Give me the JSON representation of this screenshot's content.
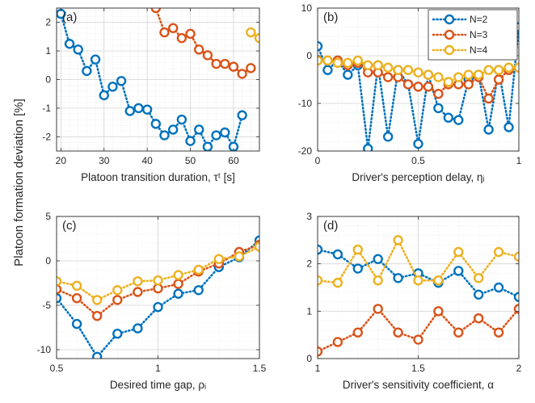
{
  "figure": {
    "ylabel": "Platoon formation deviation [%]"
  },
  "colors": {
    "N=2": "#0072BD",
    "N=3": "#D95319",
    "N=4": "#EDB120"
  },
  "chart_data": [
    {
      "id": "a",
      "panel_label": "(a)",
      "type": "line",
      "xlabel": "Platoon transition duration, τᵗ [s]",
      "xlim": [
        19,
        66
      ],
      "ylim": [
        -2.5,
        2.5
      ],
      "xticks": [
        20,
        30,
        40,
        50,
        60
      ],
      "yticks": [
        -2,
        -1,
        0,
        1,
        2
      ],
      "grid": true,
      "minor_grid": true,
      "marker": "circle",
      "linestyle": "dotted",
      "series": [
        {
          "color": "#0072BD",
          "x": [
            20,
            22,
            24,
            26,
            28,
            30,
            32,
            34,
            36,
            38,
            40,
            42,
            44,
            46,
            48,
            50,
            52,
            54,
            56,
            58,
            60,
            62
          ],
          "y": [
            2.3,
            1.25,
            1.05,
            0.3,
            0.7,
            -0.55,
            -0.25,
            -0.05,
            -1.1,
            -1.0,
            -1.05,
            -1.55,
            -1.95,
            -1.75,
            -1.4,
            -2.15,
            -1.75,
            -2.35,
            -1.95,
            -1.85,
            -2.35,
            -1.25
          ]
        },
        {
          "color": "#D95319",
          "x": [
            42,
            44,
            46,
            48,
            50,
            52,
            54,
            56,
            58,
            60,
            62,
            64
          ],
          "y": [
            2.5,
            1.65,
            1.8,
            1.45,
            1.6,
            1.05,
            0.85,
            0.55,
            0.55,
            0.45,
            0.2,
            0.4
          ]
        },
        {
          "color": "#EDB120",
          "x": [
            64,
            66
          ],
          "y": [
            1.65,
            1.45
          ]
        }
      ]
    },
    {
      "id": "b",
      "panel_label": "(b)",
      "type": "line",
      "xlabel": "Driver's perception delay, ηᵢ",
      "xlim": [
        0,
        1
      ],
      "ylim": [
        -20,
        10
      ],
      "xticks": [
        0,
        0.5,
        1
      ],
      "yticks": [
        -20,
        -10,
        0,
        10
      ],
      "grid": true,
      "minor_grid": true,
      "marker": "circle",
      "linestyle": "dotted",
      "legend": {
        "location": "top-right",
        "entries": [
          "N=2",
          "N=3",
          "N=4"
        ]
      },
      "series": [
        {
          "name": "N=2",
          "color": "#0072BD",
          "x": [
            0,
            0.05,
            0.1,
            0.15,
            0.2,
            0.25,
            0.3,
            0.35,
            0.4,
            0.45,
            0.5,
            0.55,
            0.6,
            0.65,
            0.7,
            0.75,
            0.8,
            0.85,
            0.9,
            0.95,
            1.0
          ],
          "y": [
            2,
            -3,
            -1,
            -4,
            -2,
            -19.5,
            -2,
            -17,
            -3,
            -6,
            -18.5,
            -4,
            -11,
            -13,
            -13.5,
            -5,
            -4,
            -15.5,
            -3,
            -15,
            6
          ]
        },
        {
          "name": "N=3",
          "color": "#D95319",
          "x": [
            0,
            0.05,
            0.1,
            0.15,
            0.2,
            0.25,
            0.3,
            0.35,
            0.4,
            0.45,
            0.5,
            0.55,
            0.6,
            0.65,
            0.7,
            0.75,
            0.8,
            0.85,
            0.9,
            0.95,
            1.0
          ],
          "y": [
            -1,
            -1,
            -1,
            -2,
            -1.5,
            -3.5,
            -3.5,
            -4.5,
            -4.5,
            -6,
            -6.5,
            -6.5,
            -8,
            -6,
            -6,
            -6,
            -4.5,
            -9,
            -5,
            -3,
            -2.5
          ]
        },
        {
          "name": "N=4",
          "color": "#EDB120",
          "x": [
            0,
            0.05,
            0.1,
            0.15,
            0.2,
            0.25,
            0.3,
            0.35,
            0.4,
            0.45,
            0.5,
            0.55,
            0.6,
            0.65,
            0.7,
            0.75,
            0.8,
            0.85,
            0.9,
            0.95,
            1.0
          ],
          "y": [
            -1,
            -1,
            -1.5,
            -1.5,
            -1,
            -2,
            -2,
            -2.5,
            -3,
            -3,
            -3.5,
            -4,
            -4.5,
            -5.5,
            -4.5,
            -4,
            -4,
            -3,
            -3,
            -2.5,
            -2.5
          ]
        }
      ]
    },
    {
      "id": "c",
      "panel_label": "(c)",
      "type": "line",
      "xlabel": "Desired time gap, ρᵢ",
      "xlim": [
        0.5,
        1.5
      ],
      "ylim": [
        -11,
        5
      ],
      "xticks": [
        0.5,
        1,
        1.5
      ],
      "yticks": [
        -10,
        -5,
        0,
        5
      ],
      "grid": true,
      "minor_grid": true,
      "marker": "circle",
      "linestyle": "dotted",
      "series": [
        {
          "color": "#0072BD",
          "x": [
            0.5,
            0.6,
            0.7,
            0.8,
            0.9,
            1.0,
            1.1,
            1.2,
            1.3,
            1.4,
            1.5
          ],
          "y": [
            -4.2,
            -7.1,
            -10.8,
            -8.2,
            -7.6,
            -5.2,
            -3.7,
            -3.3,
            -0.7,
            0.4,
            2.3
          ]
        },
        {
          "color": "#D95319",
          "x": [
            0.5,
            0.6,
            0.7,
            0.8,
            0.9,
            1.0,
            1.1,
            1.2,
            1.3,
            1.4,
            1.5
          ],
          "y": [
            -3.2,
            -4.2,
            -6.2,
            -4.4,
            -3.5,
            -3.1,
            -2.6,
            -1.2,
            -0.3,
            1.0,
            1.8
          ]
        },
        {
          "color": "#EDB120",
          "x": [
            0.5,
            0.6,
            0.7,
            0.8,
            0.9,
            1.0,
            1.1,
            1.2,
            1.3,
            1.4,
            1.5
          ],
          "y": [
            -2.3,
            -2.8,
            -4.4,
            -3.3,
            -2.3,
            -2.2,
            -1.6,
            -1.0,
            0.2,
            0.5,
            1.6
          ]
        }
      ]
    },
    {
      "id": "d",
      "panel_label": "(d)",
      "type": "line",
      "xlabel": "Driver's sensitivity coefficient, α",
      "xlim": [
        1,
        2
      ],
      "ylim": [
        0,
        3
      ],
      "xticks": [
        1,
        1.5,
        2
      ],
      "yticks": [
        0,
        1,
        2,
        3
      ],
      "grid": true,
      "minor_grid": true,
      "marker": "circle",
      "linestyle": "dotted",
      "series": [
        {
          "color": "#0072BD",
          "x": [
            1.0,
            1.1,
            1.2,
            1.3,
            1.4,
            1.5,
            1.6,
            1.7,
            1.8,
            1.9,
            2.0
          ],
          "y": [
            2.3,
            2.2,
            1.9,
            2.1,
            1.7,
            1.8,
            1.6,
            1.85,
            1.35,
            1.5,
            1.3
          ]
        },
        {
          "color": "#D95319",
          "x": [
            1.0,
            1.1,
            1.2,
            1.3,
            1.4,
            1.5,
            1.6,
            1.7,
            1.8,
            1.9,
            2.0
          ],
          "y": [
            0.15,
            0.35,
            0.55,
            1.05,
            0.55,
            0.4,
            1.0,
            0.55,
            0.85,
            0.55,
            1.05
          ]
        },
        {
          "color": "#EDB120",
          "x": [
            1.0,
            1.1,
            1.2,
            1.3,
            1.4,
            1.5,
            1.6,
            1.7,
            1.8,
            1.9,
            2.0
          ],
          "y": [
            1.65,
            1.6,
            2.3,
            1.65,
            2.5,
            1.65,
            1.65,
            2.25,
            1.7,
            2.25,
            2.15
          ]
        }
      ]
    }
  ]
}
